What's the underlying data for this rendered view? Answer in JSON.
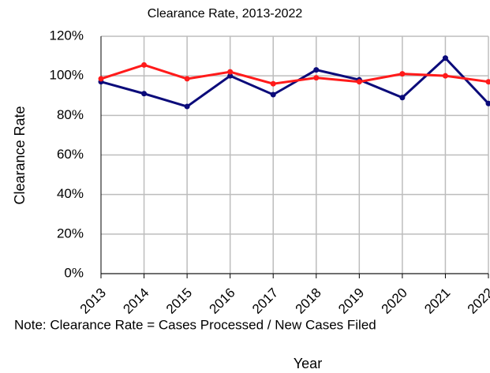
{
  "chart_data": {
    "type": "line",
    "title": "Clearance Rate, 2013-2022",
    "categories": [
      "2013",
      "2014",
      "2015",
      "2016",
      "2017",
      "2018",
      "2019",
      "2020",
      "2021",
      "2022"
    ],
    "series": [
      {
        "color": "#0b0b7a",
        "values": [
          97,
          91,
          84.5,
          100,
          90.5,
          103,
          98,
          89,
          109,
          86
        ]
      },
      {
        "color": "#ff1a1a",
        "values": [
          98.5,
          105.5,
          98.5,
          102,
          96,
          99,
          97,
          101,
          100,
          97
        ]
      }
    ],
    "ylim": [
      0,
      120
    ],
    "yticks": [
      {
        "value": 0,
        "label": "0%"
      },
      {
        "value": 20,
        "label": "20%"
      },
      {
        "value": 40,
        "label": "40%"
      },
      {
        "value": 60,
        "label": "60%"
      },
      {
        "value": 80,
        "label": "80%"
      },
      {
        "value": 100,
        "label": "100%"
      },
      {
        "value": 120,
        "label": "120%"
      }
    ],
    "grid": true,
    "y_label": "Clearance Rate",
    "x_label": "Year",
    "note": "Note: Clearance Rate = Cases Processed / New Cases Filed"
  }
}
